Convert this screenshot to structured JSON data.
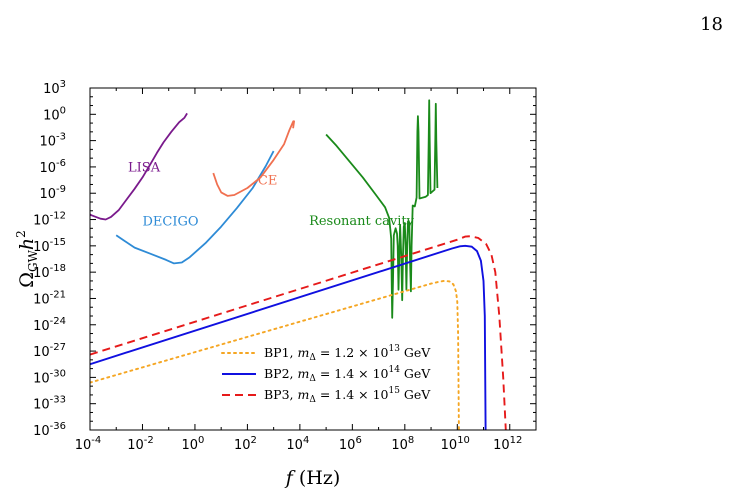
{
  "page": {
    "number": "18"
  },
  "chart_data": {
    "type": "line",
    "title": "",
    "xlabel": "f (Hz)",
    "ylabel": "Ω_GW h²",
    "xscale": "log",
    "yscale": "log",
    "xlim": [
      0.0001,
      10000000000000.0
    ],
    "ylim": [
      1e-36,
      1000.0
    ],
    "grid": false,
    "x_ticks": [
      {
        "exp": -4,
        "label": "10",
        "sup": "-4"
      },
      {
        "exp": -2,
        "label": "10",
        "sup": "-2"
      },
      {
        "exp": 0,
        "label": "10",
        "sup": "0"
      },
      {
        "exp": 2,
        "label": "10",
        "sup": "2"
      },
      {
        "exp": 4,
        "label": "10",
        "sup": "4"
      },
      {
        "exp": 6,
        "label": "10",
        "sup": "6"
      },
      {
        "exp": 8,
        "label": "10",
        "sup": "8"
      },
      {
        "exp": 10,
        "label": "10",
        "sup": "10"
      },
      {
        "exp": 12,
        "label": "10",
        "sup": "12"
      }
    ],
    "y_ticks": [
      {
        "exp": 3,
        "label": "10",
        "sup": "3"
      },
      {
        "exp": 0,
        "label": "10",
        "sup": "0"
      },
      {
        "exp": -3,
        "label": "10",
        "sup": "-3"
      },
      {
        "exp": -6,
        "label": "10",
        "sup": "-6"
      },
      {
        "exp": -9,
        "label": "10",
        "sup": "-9"
      },
      {
        "exp": -12,
        "label": "10",
        "sup": "-12"
      },
      {
        "exp": -15,
        "label": "10",
        "sup": "-15"
      },
      {
        "exp": -18,
        "label": "10",
        "sup": "-18"
      },
      {
        "exp": -21,
        "label": "10",
        "sup": "-21"
      },
      {
        "exp": -24,
        "label": "10",
        "sup": "-24"
      },
      {
        "exp": -27,
        "label": "10",
        "sup": "-27"
      },
      {
        "exp": -30,
        "label": "10",
        "sup": "-30"
      },
      {
        "exp": -33,
        "label": "10",
        "sup": "-33"
      },
      {
        "exp": -36,
        "label": "10",
        "sup": "-36"
      }
    ],
    "sensitivity_curves": [
      {
        "name": "LISA",
        "color": "#7a1a8c",
        "log_points": [
          [
            -5,
            -8.3
          ],
          [
            -4.6,
            -9.6
          ],
          [
            -4.3,
            -10.8
          ],
          [
            -3.95,
            -11.5
          ],
          [
            -3.6,
            -11.9
          ],
          [
            -3.4,
            -12.0
          ],
          [
            -3.2,
            -11.7
          ],
          [
            -2.9,
            -10.9
          ],
          [
            -2.6,
            -9.7
          ],
          [
            -2.3,
            -8.5
          ],
          [
            -2.0,
            -7.2
          ],
          [
            -1.7,
            -5.7
          ],
          [
            -1.45,
            -4.4
          ],
          [
            -1.2,
            -3.2
          ],
          [
            -0.9,
            -2.0
          ],
          [
            -0.6,
            -0.9
          ],
          [
            -0.4,
            -0.4
          ],
          [
            -0.3,
            0.1
          ]
        ]
      },
      {
        "name": "DECIGO",
        "color": "#2e8bd6",
        "log_points": [
          [
            -3.0,
            -13.8
          ],
          [
            -2.7,
            -14.4
          ],
          [
            -2.3,
            -15.2
          ],
          [
            -1.7,
            -15.9
          ],
          [
            -1.1,
            -16.6
          ],
          [
            -0.8,
            -17.0
          ],
          [
            -0.5,
            -16.9
          ],
          [
            -0.2,
            -16.3
          ],
          [
            0.4,
            -14.7
          ],
          [
            1.0,
            -12.8
          ],
          [
            1.6,
            -10.7
          ],
          [
            2.2,
            -8.4
          ],
          [
            2.7,
            -5.9
          ],
          [
            3.0,
            -4.2
          ]
        ]
      },
      {
        "name": "CE",
        "color": "#f07050",
        "log_points": [
          [
            0.7,
            -6.7
          ],
          [
            0.85,
            -8.0
          ],
          [
            1.0,
            -8.9
          ],
          [
            1.25,
            -9.3
          ],
          [
            1.5,
            -9.2
          ],
          [
            2.0,
            -8.4
          ],
          [
            2.5,
            -7.2
          ],
          [
            3.0,
            -5.2
          ],
          [
            3.4,
            -3.4
          ],
          [
            3.6,
            -1.8
          ],
          [
            3.75,
            -0.8
          ],
          [
            3.78,
            -0.8
          ],
          [
            3.74,
            -1.6
          ]
        ]
      },
      {
        "name": "Resonant cavity",
        "color": "#1a8a1a",
        "log_points": [
          [
            5.0,
            -2.3
          ],
          [
            5.4,
            -3.6
          ],
          [
            5.9,
            -5.4
          ],
          [
            6.4,
            -7.2
          ],
          [
            6.9,
            -9.2
          ],
          [
            7.25,
            -10.6
          ],
          [
            7.4,
            -11.8
          ],
          [
            7.45,
            -13.2
          ],
          [
            7.48,
            -14.2
          ],
          [
            7.5,
            -19.0
          ],
          [
            7.52,
            -23.2
          ],
          [
            7.55,
            -19.0
          ],
          [
            7.58,
            -13.8
          ],
          [
            7.65,
            -13.0
          ],
          [
            7.7,
            -13.6
          ],
          [
            7.73,
            -15.0
          ],
          [
            7.76,
            -20.0
          ],
          [
            7.79,
            -16.0
          ],
          [
            7.82,
            -12.6
          ],
          [
            7.86,
            -16.0
          ],
          [
            7.9,
            -21.2
          ],
          [
            7.93,
            -16.0
          ],
          [
            7.96,
            -12.8
          ],
          [
            8.0,
            -12.4
          ],
          [
            8.03,
            -15.0
          ],
          [
            8.06,
            -20.0
          ],
          [
            8.09,
            -15.0
          ],
          [
            8.12,
            -12.2
          ],
          [
            8.17,
            -12.4
          ],
          [
            8.2,
            -17.0
          ],
          [
            8.23,
            -20.2
          ],
          [
            8.26,
            -15.0
          ],
          [
            8.3,
            -10.4
          ],
          [
            8.38,
            -10.5
          ],
          [
            8.45,
            -9.5
          ],
          [
            8.48,
            -2.0
          ],
          [
            8.5,
            -0.2
          ],
          [
            8.52,
            -2.0
          ],
          [
            8.56,
            -9.6
          ],
          [
            8.8,
            -9.4
          ],
          [
            8.88,
            -9.2
          ],
          [
            8.91,
            -3.0
          ],
          [
            8.93,
            1.6
          ],
          [
            8.95,
            -3.0
          ],
          [
            8.98,
            -9.0
          ],
          [
            9.05,
            -8.8
          ],
          [
            9.13,
            -8.6
          ],
          [
            9.16,
            -3.0
          ],
          [
            9.18,
            1.2
          ],
          [
            9.2,
            -3.0
          ],
          [
            9.24,
            -8.4
          ]
        ]
      }
    ],
    "annotations": [
      {
        "text": "LISA",
        "color": "#7a1a8c"
      },
      {
        "text": "DECIGO",
        "color": "#2e8bd6"
      },
      {
        "text": "CE",
        "color": "#f07050"
      },
      {
        "text": "Resonant cavity",
        "color": "#1a8a1a"
      }
    ],
    "series": [
      {
        "name": "BP1, m_Δ = 1.2 × 10¹³ GeV",
        "legend_prefix": "BP1,",
        "legend_m": "m",
        "legend_sub": "Δ",
        "legend_eq": " = 1.2 × 10",
        "legend_sup": "13",
        "legend_unit": " GeV",
        "color": "#f5a623",
        "dash": "dotted",
        "log_points": [
          [
            -4,
            -30.6
          ],
          [
            9.0,
            -19.3
          ],
          [
            9.3,
            -19.1
          ],
          [
            9.5,
            -19.0
          ],
          [
            9.7,
            -19.05
          ],
          [
            9.85,
            -19.4
          ],
          [
            9.95,
            -20.2
          ],
          [
            10.0,
            -21.4
          ],
          [
            10.03,
            -25.0
          ],
          [
            10.06,
            -36.0
          ]
        ]
      },
      {
        "name": "BP2, m_Δ = 1.4 × 10¹⁴ GeV",
        "legend_prefix": "BP2,",
        "legend_m": "m",
        "legend_sub": "Δ",
        "legend_eq": " = 1.4 × 10",
        "legend_sup": "14",
        "legend_unit": " GeV",
        "color": "#1010e0",
        "dash": "solid",
        "log_points": [
          [
            -4,
            -28.5
          ],
          [
            9.8,
            -15.3
          ],
          [
            10.1,
            -15.05
          ],
          [
            10.3,
            -15.0
          ],
          [
            10.55,
            -15.1
          ],
          [
            10.75,
            -15.6
          ],
          [
            10.9,
            -16.7
          ],
          [
            11.0,
            -19.0
          ],
          [
            11.05,
            -23.0
          ],
          [
            11.08,
            -36.0
          ]
        ]
      },
      {
        "name": "BP3, m_Δ = 1.4 × 10¹⁵ GeV",
        "legend_prefix": "BP3,",
        "legend_m": "m",
        "legend_sub": "Δ",
        "legend_eq": " = 1.4 × 10",
        "legend_sup": "15",
        "legend_unit": " GeV",
        "color": "#e61a1a",
        "dash": "dashed",
        "log_points": [
          [
            -4,
            -27.4
          ],
          [
            10.0,
            -14.3
          ],
          [
            10.3,
            -13.95
          ],
          [
            10.5,
            -13.9
          ],
          [
            10.8,
            -14.1
          ],
          [
            11.1,
            -14.8
          ],
          [
            11.3,
            -16.0
          ],
          [
            11.45,
            -18.0
          ],
          [
            11.6,
            -23.0
          ],
          [
            11.75,
            -30.0
          ],
          [
            11.85,
            -36.0
          ]
        ]
      }
    ],
    "legend_position": "lower-center"
  }
}
